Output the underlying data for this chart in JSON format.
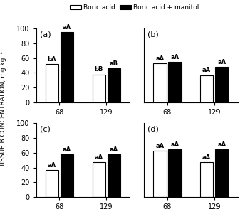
{
  "panels": [
    {
      "label": "(a)",
      "clone68": [
        52,
        95
      ],
      "clone129": [
        38,
        46
      ],
      "annotations_68": [
        "bA",
        "aA"
      ],
      "annotations_129": [
        "bB",
        "aB"
      ]
    },
    {
      "label": "(b)",
      "clone68": [
        53,
        55
      ],
      "clone129": [
        37,
        48
      ],
      "annotations_68": [
        "aA",
        "aA"
      ],
      "annotations_129": [
        "aA",
        "aA"
      ]
    },
    {
      "label": "(c)",
      "clone68": [
        37,
        58
      ],
      "clone129": [
        47,
        58
      ],
      "annotations_68": [
        "aA",
        "aA"
      ],
      "annotations_129": [
        "aA",
        "aA"
      ]
    },
    {
      "label": "(d)",
      "clone68": [
        63,
        65
      ],
      "clone129": [
        47,
        65
      ],
      "annotations_68": [
        "aA",
        "aA"
      ],
      "annotations_129": [
        "aA",
        "aA"
      ]
    }
  ],
  "ylim": [
    0,
    100
  ],
  "yticks": [
    0,
    20,
    40,
    60,
    80,
    100
  ],
  "bar_width": 0.28,
  "bar_gap": 0.04,
  "bar_colors": [
    "white",
    "black"
  ],
  "bar_edgecolor": "black",
  "bar_linewidth": 0.8,
  "xtick_labels": [
    "68",
    "129"
  ],
  "x_positions": [
    0.5,
    1.5
  ],
  "xlim": [
    0.0,
    2.0
  ],
  "ylabel": "TISSUE B CONCENTRATION, mg kg⁻¹",
  "legend_labels": [
    "Boric acid",
    "Boric acid + manitol"
  ],
  "annotation_fontsize": 6,
  "annotation_fontweight": "bold",
  "label_fontsize": 8,
  "tick_fontsize": 7,
  "ylabel_fontsize": 6.5
}
